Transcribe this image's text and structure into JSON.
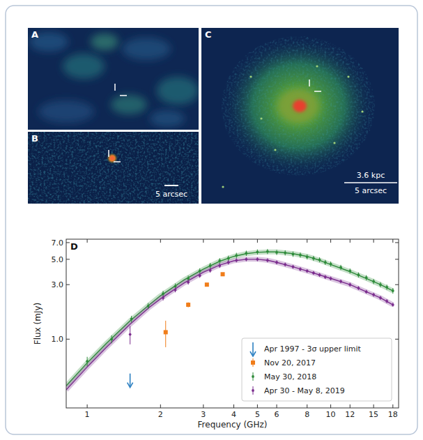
{
  "panels": [
    {
      "label": "A"
    },
    {
      "label": "B",
      "scale_bar": "5 arcsec"
    },
    {
      "label": "C",
      "scale_bar_labels": [
        "3.6 kpc",
        "5 arcsec"
      ]
    }
  ],
  "chart_data": {
    "type": "scatter",
    "title": "D",
    "x_label": "Frequency (GHz)",
    "y_label": "Flux (mJy)",
    "log": true,
    "grid": false,
    "legend": "lower right",
    "xlim": [
      0.82,
      19
    ],
    "ylim": [
      0.25,
      7.5
    ],
    "xticks": [
      1,
      2,
      3,
      4,
      5,
      6,
      8,
      10,
      12,
      15,
      18
    ],
    "yticks": [
      {
        "value": 1,
        "label": "1.0"
      },
      {
        "value": 3,
        "label": "3.0"
      },
      {
        "value": 5,
        "label": "5.0"
      },
      {
        "value": 7,
        "label": "7.0"
      }
    ],
    "series": [
      {
        "name": "Apr 1997 - 3σ upper limit",
        "color": "#2b7fc1",
        "marker": "arrow",
        "x": [
          1.5
        ],
        "values": [
          0.5
        ]
      },
      {
        "name": "Nov 20, 2017",
        "color": "#f07d1a",
        "marker": "square",
        "x": [
          2.1,
          2.6,
          3.1,
          3.6
        ],
        "values": [
          1.15,
          2.0,
          3.0,
          3.7
        ],
        "errors": [
          0.3,
          0.1,
          0.1,
          0.1
        ]
      },
      {
        "name": "May 30, 2018",
        "color": "#2e8b3a",
        "marker": "circle",
        "x": [
          1.0,
          1.26,
          1.52,
          1.78,
          2.05,
          2.3,
          2.6,
          2.9,
          3.2,
          3.5,
          3.8,
          4.1,
          4.5,
          5,
          5.5,
          6,
          6.5,
          7,
          7.5,
          8,
          8.5,
          9,
          9.5,
          10,
          11,
          12,
          13,
          14,
          15,
          16,
          17,
          18
        ],
        "values": [
          0.64,
          1.0,
          1.5,
          1.95,
          2.5,
          2.9,
          3.4,
          3.95,
          4.4,
          4.85,
          5.1,
          5.4,
          5.65,
          5.8,
          5.85,
          5.75,
          5.7,
          5.55,
          5.45,
          5.25,
          5.1,
          4.95,
          4.7,
          4.55,
          4.25,
          3.95,
          3.65,
          3.45,
          3.2,
          3.0,
          2.85,
          2.65
        ],
        "errors": [
          0.06,
          0.08,
          0.1,
          0.12,
          0.15,
          0.17,
          0.2,
          0.22,
          0.25,
          0.27,
          0.28,
          0.3,
          0.3,
          0.3,
          0.3,
          0.3,
          0.3,
          0.3,
          0.28,
          0.27,
          0.26,
          0.25,
          0.24,
          0.23,
          0.22,
          0.2,
          0.19,
          0.18,
          0.17,
          0.16,
          0.15,
          0.15
        ]
      },
      {
        "name": "Apr 30 - May 8, 2019",
        "color": "#7b2d8e",
        "marker": "circle",
        "x": [
          1.5,
          2.05,
          2.3,
          2.6,
          2.9,
          3.2,
          3.5,
          3.8,
          4.1,
          4.5,
          5,
          5.5,
          6,
          6.5,
          7,
          7.5,
          8,
          8.5,
          9,
          9.5,
          10,
          11,
          12,
          13,
          14,
          15,
          16,
          17,
          18
        ],
        "values": [
          1.1,
          2.3,
          2.7,
          3.15,
          3.6,
          4.0,
          4.4,
          4.7,
          4.9,
          5.0,
          5.0,
          4.9,
          4.7,
          4.5,
          4.3,
          4.1,
          3.95,
          3.8,
          3.65,
          3.5,
          3.4,
          3.2,
          3.0,
          2.8,
          2.6,
          2.45,
          2.3,
          2.15,
          2.0
        ],
        "errors": [
          0.2,
          0.12,
          0.13,
          0.15,
          0.16,
          0.18,
          0.2,
          0.2,
          0.2,
          0.2,
          0.2,
          0.2,
          0.19,
          0.18,
          0.17,
          0.16,
          0.15,
          0.15,
          0.14,
          0.14,
          0.13,
          0.12,
          0.12,
          0.11,
          0.1,
          0.1,
          0.09,
          0.09,
          0.08
        ]
      },
      {
        "type": "line",
        "color": "#2e8b3a",
        "x": [
          0.82,
          1.0,
          1.2,
          1.5,
          1.8,
          2.0,
          2.5,
          3.0,
          3.5,
          4.0,
          4.5,
          5,
          5.5,
          6,
          7,
          8,
          9,
          10,
          12,
          14,
          16,
          18
        ],
        "values": [
          0.39,
          0.62,
          0.92,
          1.45,
          2.0,
          2.4,
          3.3,
          4.1,
          4.8,
          5.3,
          5.6,
          5.75,
          5.8,
          5.8,
          5.6,
          5.3,
          4.9,
          4.5,
          3.9,
          3.4,
          3.0,
          2.65
        ]
      },
      {
        "type": "line",
        "color": "#7b2d8e",
        "x": [
          0.82,
          1.0,
          1.2,
          1.5,
          1.8,
          2.0,
          2.5,
          3.0,
          3.5,
          4.0,
          4.5,
          5,
          5.5,
          6,
          7,
          8,
          9,
          10,
          12,
          14,
          16,
          18
        ],
        "values": [
          0.36,
          0.57,
          0.85,
          1.35,
          1.9,
          2.25,
          3.1,
          3.85,
          4.45,
          4.85,
          5.0,
          5.0,
          4.9,
          4.7,
          4.3,
          3.95,
          3.65,
          3.4,
          3.0,
          2.6,
          2.3,
          2.0
        ]
      }
    ]
  }
}
